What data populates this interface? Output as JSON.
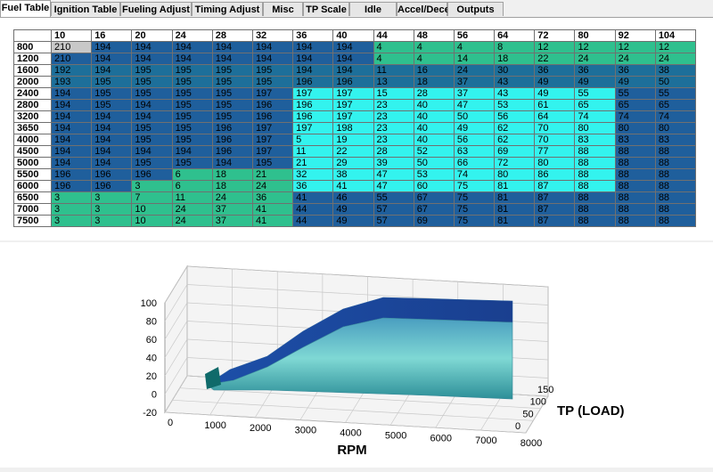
{
  "tabs": [
    "Fuel Table",
    "Ignition Table",
    "Fueling Adjust",
    "Timing Adjust",
    "Misc",
    "TP Scale",
    "Idle",
    "Accel/Decel",
    "Outputs"
  ],
  "selected_tab": 0,
  "palette": {
    "s": "#c8c8c8",
    "b": "#1f5f9c",
    "m": "#1d6f9a",
    "g": "#2fc08e",
    "c": "#33f3ee"
  },
  "table": {
    "columns": [
      "10",
      "16",
      "20",
      "24",
      "28",
      "32",
      "36",
      "40",
      "44",
      "48",
      "56",
      "64",
      "72",
      "80",
      "92",
      "104"
    ],
    "rows": [
      {
        "rpm": "800",
        "colors": "sbbbbbbbgggggggg",
        "cells": [
          "210",
          "194",
          "194",
          "194",
          "194",
          "194",
          "194",
          "194",
          "4",
          "4",
          "4",
          "8",
          "12",
          "12",
          "12",
          "12"
        ]
      },
      {
        "rpm": "1200",
        "colors": "bbbbbbbbgggggggg",
        "cells": [
          "210",
          "194",
          "194",
          "194",
          "194",
          "194",
          "194",
          "194",
          "4",
          "4",
          "14",
          "18",
          "22",
          "24",
          "24",
          "24"
        ]
      },
      {
        "rpm": "1600",
        "colors": "mmmmmmmmmmmmmmmm",
        "cells": [
          "192",
          "194",
          "195",
          "195",
          "195",
          "195",
          "194",
          "194",
          "11",
          "16",
          "24",
          "30",
          "36",
          "36",
          "36",
          "38"
        ]
      },
      {
        "rpm": "2000",
        "colors": "mmmmmmmmmmmmmmmm",
        "cells": [
          "193",
          "195",
          "195",
          "195",
          "195",
          "195",
          "196",
          "196",
          "13",
          "18",
          "37",
          "43",
          "49",
          "49",
          "49",
          "50"
        ]
      },
      {
        "rpm": "2400",
        "colors": "bbbbbbccccccccbb",
        "cells": [
          "194",
          "195",
          "195",
          "195",
          "195",
          "197",
          "197",
          "197",
          "15",
          "28",
          "37",
          "43",
          "49",
          "55",
          "55",
          "55"
        ]
      },
      {
        "rpm": "2800",
        "colors": "bbbbbbccccccccbb",
        "cells": [
          "194",
          "195",
          "194",
          "195",
          "195",
          "196",
          "196",
          "197",
          "23",
          "40",
          "47",
          "53",
          "61",
          "65",
          "65",
          "65"
        ]
      },
      {
        "rpm": "3200",
        "colors": "bbbbbbccccccccbb",
        "cells": [
          "194",
          "194",
          "194",
          "195",
          "195",
          "196",
          "196",
          "197",
          "23",
          "40",
          "50",
          "56",
          "64",
          "74",
          "74",
          "74"
        ]
      },
      {
        "rpm": "3650",
        "colors": "bbbbbbccccccccbb",
        "cells": [
          "194",
          "194",
          "195",
          "195",
          "196",
          "197",
          "197",
          "198",
          "23",
          "40",
          "49",
          "62",
          "70",
          "80",
          "80",
          "80"
        ]
      },
      {
        "rpm": "4000",
        "colors": "bbbbbbccccccccbb",
        "cells": [
          "194",
          "194",
          "195",
          "195",
          "196",
          "197",
          "5",
          "19",
          "23",
          "40",
          "56",
          "62",
          "70",
          "83",
          "83",
          "83"
        ]
      },
      {
        "rpm": "4500",
        "colors": "bbbbbbccccccccbb",
        "cells": [
          "194",
          "194",
          "194",
          "194",
          "196",
          "197",
          "11",
          "22",
          "28",
          "52",
          "63",
          "69",
          "77",
          "88",
          "88",
          "88"
        ]
      },
      {
        "rpm": "5000",
        "colors": "bbbbbbccccccccbb",
        "cells": [
          "194",
          "194",
          "195",
          "195",
          "194",
          "195",
          "21",
          "29",
          "39",
          "50",
          "66",
          "72",
          "80",
          "88",
          "88",
          "88"
        ]
      },
      {
        "rpm": "5500",
        "colors": "bbbgggccccccccbb",
        "cells": [
          "196",
          "196",
          "196",
          "6",
          "18",
          "21",
          "32",
          "38",
          "47",
          "53",
          "74",
          "80",
          "86",
          "88",
          "88",
          "88"
        ]
      },
      {
        "rpm": "6000",
        "colors": "bbggggccccccccbb",
        "cells": [
          "196",
          "196",
          "3",
          "6",
          "18",
          "24",
          "36",
          "41",
          "47",
          "60",
          "75",
          "81",
          "87",
          "88",
          "88",
          "88"
        ]
      },
      {
        "rpm": "6500",
        "colors": "ggggggbbbbbbbbbb",
        "cells": [
          "3",
          "3",
          "7",
          "11",
          "24",
          "36",
          "41",
          "46",
          "55",
          "67",
          "75",
          "81",
          "87",
          "88",
          "88",
          "88"
        ]
      },
      {
        "rpm": "7000",
        "colors": "ggggggbbbbbbbbbb",
        "cells": [
          "3",
          "3",
          "10",
          "24",
          "37",
          "41",
          "44",
          "49",
          "57",
          "67",
          "75",
          "81",
          "87",
          "88",
          "88",
          "88"
        ]
      },
      {
        "rpm": "7500",
        "colors": "ggggggbbbbbbbbbb",
        "cells": [
          "3",
          "3",
          "10",
          "24",
          "37",
          "41",
          "44",
          "49",
          "57",
          "69",
          "75",
          "81",
          "87",
          "88",
          "88",
          "88"
        ]
      }
    ]
  },
  "chart": {
    "z_ticks": [
      "100",
      "80",
      "60",
      "40",
      "20",
      "0",
      "-20"
    ],
    "rpm_ticks": [
      "0",
      "1000",
      "2000",
      "3000",
      "4000",
      "5000",
      "6000",
      "7000",
      "8000"
    ],
    "tp_ticks": [
      "150",
      "100",
      "50",
      "0"
    ],
    "x_label": "RPM",
    "y_label": "TP (LOAD)"
  }
}
